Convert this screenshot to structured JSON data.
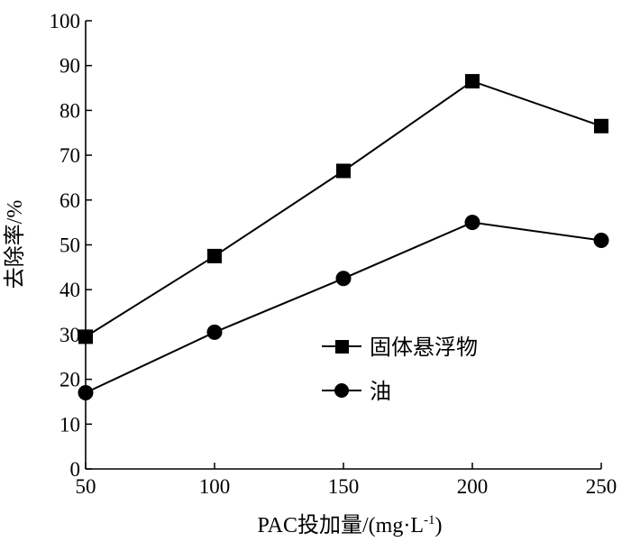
{
  "chart_data": {
    "type": "line",
    "title": "",
    "xlabel": "PAC投加量/(mg·L",
    "xlabel_sup": "-1",
    "xlabel_close": ")",
    "ylabel": "去除率/%",
    "x": [
      50,
      100,
      150,
      200,
      250
    ],
    "x_tick_labels": [
      "50",
      "100",
      "150",
      "200",
      "250"
    ],
    "y_tick_labels": [
      "0",
      "10",
      "20",
      "30",
      "40",
      "50",
      "60",
      "70",
      "80",
      "90",
      "100"
    ],
    "xlim": [
      50,
      250
    ],
    "ylim": [
      0,
      100
    ],
    "grid": false,
    "legend_position": "center-right",
    "series": [
      {
        "name": "固体悬浮物",
        "marker": "square",
        "color": "#000000",
        "values": [
          29.5,
          47.5,
          66.5,
          86.5,
          76.5
        ]
      },
      {
        "name": "油",
        "marker": "circle",
        "color": "#000000",
        "values": [
          17,
          30.5,
          42.5,
          55,
          51
        ]
      }
    ]
  }
}
